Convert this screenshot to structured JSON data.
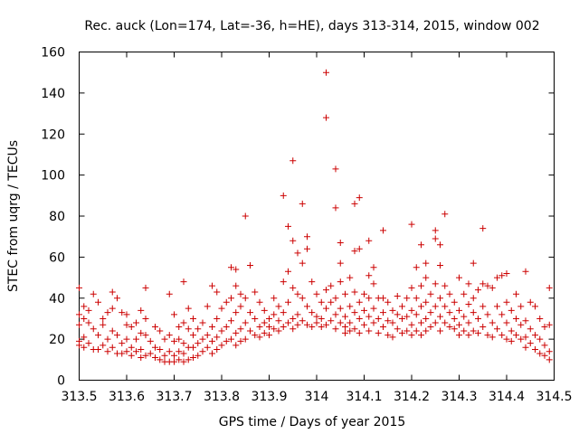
{
  "chart_data": {
    "type": "scatter",
    "title": "Rec. auck (Lon=174, Lat=-36, h=HE), days 313-314, 2015, window 002",
    "xlabel": "GPS time / Days of year 2015",
    "ylabel": "STEC from uqrg / TECUs",
    "xlim": [
      313.5,
      314.5
    ],
    "ylim": [
      0,
      160
    ],
    "xticks": [
      "313.5",
      "313.6",
      "313.7",
      "313.8",
      "313.9",
      "314",
      "314.1",
      "314.2",
      "314.3",
      "314.4",
      "314.5"
    ],
    "yticks": [
      "0",
      "20",
      "40",
      "60",
      "80",
      "100",
      "120",
      "140",
      "160"
    ],
    "grid": false,
    "marker": "+",
    "color": "#cc0000",
    "points": [
      [
        313.5,
        45
      ],
      [
        313.5,
        32
      ],
      [
        313.5,
        27
      ],
      [
        313.5,
        19
      ],
      [
        313.5,
        17
      ],
      [
        313.51,
        36
      ],
      [
        313.51,
        30
      ],
      [
        313.51,
        21
      ],
      [
        313.51,
        16
      ],
      [
        313.52,
        34
      ],
      [
        313.52,
        28
      ],
      [
        313.52,
        18
      ],
      [
        313.53,
        42
      ],
      [
        313.53,
        25
      ],
      [
        313.53,
        15
      ],
      [
        313.54,
        38
      ],
      [
        313.54,
        22
      ],
      [
        313.54,
        15
      ],
      [
        313.55,
        30
      ],
      [
        313.55,
        27
      ],
      [
        313.55,
        17
      ],
      [
        313.56,
        33
      ],
      [
        313.56,
        20
      ],
      [
        313.56,
        14
      ],
      [
        313.57,
        43
      ],
      [
        313.57,
        35
      ],
      [
        313.57,
        24
      ],
      [
        313.57,
        16
      ],
      [
        313.58,
        40
      ],
      [
        313.58,
        22
      ],
      [
        313.58,
        13
      ],
      [
        313.59,
        33
      ],
      [
        313.59,
        18
      ],
      [
        313.59,
        13
      ],
      [
        313.6,
        32
      ],
      [
        313.6,
        27
      ],
      [
        313.6,
        20
      ],
      [
        313.6,
        14
      ],
      [
        313.61,
        26
      ],
      [
        313.61,
        16
      ],
      [
        313.61,
        12
      ],
      [
        313.62,
        28
      ],
      [
        313.62,
        20
      ],
      [
        313.62,
        14
      ],
      [
        313.63,
        34
      ],
      [
        313.63,
        23
      ],
      [
        313.63,
        15
      ],
      [
        313.63,
        11
      ],
      [
        313.64,
        45
      ],
      [
        313.64,
        30
      ],
      [
        313.64,
        22
      ],
      [
        313.64,
        12
      ],
      [
        313.65,
        19
      ],
      [
        313.65,
        13
      ],
      [
        313.66,
        26
      ],
      [
        313.66,
        16
      ],
      [
        313.66,
        11
      ],
      [
        313.67,
        24
      ],
      [
        313.67,
        15
      ],
      [
        313.67,
        10
      ],
      [
        313.68,
        20
      ],
      [
        313.68,
        12
      ],
      [
        313.68,
        9
      ],
      [
        313.69,
        42
      ],
      [
        313.69,
        22
      ],
      [
        313.69,
        14
      ],
      [
        313.69,
        9
      ],
      [
        313.7,
        32
      ],
      [
        313.7,
        19
      ],
      [
        313.7,
        12
      ],
      [
        313.7,
        9
      ],
      [
        313.71,
        26
      ],
      [
        313.71,
        20
      ],
      [
        313.71,
        14
      ],
      [
        313.71,
        10
      ],
      [
        313.72,
        48
      ],
      [
        313.72,
        28
      ],
      [
        313.72,
        18
      ],
      [
        313.72,
        13
      ],
      [
        313.72,
        9
      ],
      [
        313.73,
        35
      ],
      [
        313.73,
        25
      ],
      [
        313.73,
        16
      ],
      [
        313.73,
        10
      ],
      [
        313.74,
        30
      ],
      [
        313.74,
        22
      ],
      [
        313.74,
        16
      ],
      [
        313.74,
        11
      ],
      [
        313.75,
        25
      ],
      [
        313.75,
        18
      ],
      [
        313.75,
        12
      ],
      [
        313.76,
        28
      ],
      [
        313.76,
        20
      ],
      [
        313.76,
        14
      ],
      [
        313.77,
        36
      ],
      [
        313.77,
        22
      ],
      [
        313.77,
        16
      ],
      [
        313.78,
        46
      ],
      [
        313.78,
        26
      ],
      [
        313.78,
        19
      ],
      [
        313.78,
        13
      ],
      [
        313.79,
        43
      ],
      [
        313.79,
        30
      ],
      [
        313.79,
        21
      ],
      [
        313.79,
        15
      ],
      [
        313.8,
        35
      ],
      [
        313.8,
        24
      ],
      [
        313.8,
        17
      ],
      [
        313.81,
        38
      ],
      [
        313.81,
        26
      ],
      [
        313.81,
        19
      ],
      [
        313.82,
        55
      ],
      [
        313.82,
        40
      ],
      [
        313.82,
        29
      ],
      [
        313.82,
        20
      ],
      [
        313.83,
        54
      ],
      [
        313.83,
        46
      ],
      [
        313.83,
        33
      ],
      [
        313.83,
        23
      ],
      [
        313.83,
        17
      ],
      [
        313.84,
        42
      ],
      [
        313.84,
        36
      ],
      [
        313.84,
        25
      ],
      [
        313.84,
        19
      ],
      [
        313.85,
        80
      ],
      [
        313.85,
        40
      ],
      [
        313.85,
        28
      ],
      [
        313.85,
        20
      ],
      [
        313.86,
        56
      ],
      [
        313.86,
        33
      ],
      [
        313.86,
        24
      ],
      [
        313.87,
        43
      ],
      [
        313.87,
        30
      ],
      [
        313.87,
        22
      ],
      [
        313.88,
        38
      ],
      [
        313.88,
        26
      ],
      [
        313.88,
        21
      ],
      [
        313.89,
        34
      ],
      [
        313.89,
        28
      ],
      [
        313.89,
        23
      ],
      [
        313.9,
        30
      ],
      [
        313.9,
        26
      ],
      [
        313.9,
        22
      ],
      [
        313.91,
        40
      ],
      [
        313.91,
        32
      ],
      [
        313.91,
        25
      ],
      [
        313.92,
        36
      ],
      [
        313.92,
        29
      ],
      [
        313.92,
        24
      ],
      [
        313.93,
        90
      ],
      [
        313.93,
        48
      ],
      [
        313.93,
        33
      ],
      [
        313.93,
        26
      ],
      [
        313.94,
        75
      ],
      [
        313.94,
        53
      ],
      [
        313.94,
        38
      ],
      [
        313.94,
        28
      ],
      [
        313.95,
        107
      ],
      [
        313.95,
        68
      ],
      [
        313.95,
        45
      ],
      [
        313.95,
        30
      ],
      [
        313.95,
        25
      ],
      [
        313.96,
        62
      ],
      [
        313.96,
        42
      ],
      [
        313.96,
        32
      ],
      [
        313.96,
        27
      ],
      [
        313.97,
        86
      ],
      [
        313.97,
        57
      ],
      [
        313.97,
        40
      ],
      [
        313.97,
        29
      ],
      [
        313.98,
        70
      ],
      [
        313.98,
        64
      ],
      [
        313.98,
        36
      ],
      [
        313.98,
        27
      ],
      [
        313.99,
        48
      ],
      [
        313.99,
        33
      ],
      [
        313.99,
        26
      ],
      [
        314.0,
        42
      ],
      [
        314.0,
        31
      ],
      [
        314.0,
        28
      ],
      [
        314.01,
        38
      ],
      [
        314.01,
        30
      ],
      [
        314.01,
        26
      ],
      [
        314.02,
        150
      ],
      [
        314.02,
        128
      ],
      [
        314.02,
        44
      ],
      [
        314.02,
        35
      ],
      [
        314.02,
        27
      ],
      [
        314.03,
        46
      ],
      [
        314.03,
        38
      ],
      [
        314.03,
        29
      ],
      [
        314.04,
        103
      ],
      [
        314.04,
        84
      ],
      [
        314.04,
        40
      ],
      [
        314.04,
        32
      ],
      [
        314.04,
        25
      ],
      [
        314.05,
        67
      ],
      [
        314.05,
        57
      ],
      [
        314.05,
        48
      ],
      [
        314.05,
        35
      ],
      [
        314.05,
        28
      ],
      [
        314.06,
        42
      ],
      [
        314.06,
        31
      ],
      [
        314.06,
        26
      ],
      [
        314.06,
        23
      ],
      [
        314.07,
        50
      ],
      [
        314.07,
        36
      ],
      [
        314.07,
        28
      ],
      [
        314.07,
        24
      ],
      [
        314.08,
        86
      ],
      [
        314.08,
        63
      ],
      [
        314.08,
        43
      ],
      [
        314.08,
        33
      ],
      [
        314.08,
        25
      ],
      [
        314.09,
        89
      ],
      [
        314.09,
        64
      ],
      [
        314.09,
        38
      ],
      [
        314.09,
        30
      ],
      [
        314.09,
        23
      ],
      [
        314.1,
        42
      ],
      [
        314.1,
        34
      ],
      [
        314.1,
        27
      ],
      [
        314.11,
        68
      ],
      [
        314.11,
        51
      ],
      [
        314.11,
        40
      ],
      [
        314.11,
        31
      ],
      [
        314.11,
        24
      ],
      [
        314.12,
        55
      ],
      [
        314.12,
        47
      ],
      [
        314.12,
        35
      ],
      [
        314.12,
        28
      ],
      [
        314.13,
        40
      ],
      [
        314.13,
        30
      ],
      [
        314.13,
        23
      ],
      [
        314.14,
        73
      ],
      [
        314.14,
        40
      ],
      [
        314.14,
        33
      ],
      [
        314.14,
        26
      ],
      [
        314.15,
        38
      ],
      [
        314.15,
        29
      ],
      [
        314.15,
        22
      ],
      [
        314.16,
        34
      ],
      [
        314.16,
        28
      ],
      [
        314.16,
        21
      ],
      [
        314.17,
        41
      ],
      [
        314.17,
        32
      ],
      [
        314.17,
        25
      ],
      [
        314.18,
        36
      ],
      [
        314.18,
        30
      ],
      [
        314.18,
        23
      ],
      [
        314.19,
        40
      ],
      [
        314.19,
        31
      ],
      [
        314.19,
        24
      ],
      [
        314.2,
        76
      ],
      [
        314.2,
        45
      ],
      [
        314.2,
        34
      ],
      [
        314.2,
        27
      ],
      [
        314.2,
        22
      ],
      [
        314.21,
        55
      ],
      [
        314.21,
        40
      ],
      [
        314.21,
        32
      ],
      [
        314.21,
        24
      ],
      [
        314.22,
        66
      ],
      [
        314.22,
        46
      ],
      [
        314.22,
        36
      ],
      [
        314.22,
        28
      ],
      [
        314.22,
        22
      ],
      [
        314.23,
        57
      ],
      [
        314.23,
        50
      ],
      [
        314.23,
        38
      ],
      [
        314.23,
        30
      ],
      [
        314.23,
        24
      ],
      [
        314.24,
        42
      ],
      [
        314.24,
        33
      ],
      [
        314.24,
        26
      ],
      [
        314.25,
        73
      ],
      [
        314.25,
        69
      ],
      [
        314.25,
        47
      ],
      [
        314.25,
        36
      ],
      [
        314.25,
        28
      ],
      [
        314.26,
        66
      ],
      [
        314.26,
        56
      ],
      [
        314.26,
        40
      ],
      [
        314.26,
        31
      ],
      [
        314.26,
        24
      ],
      [
        314.27,
        81
      ],
      [
        314.27,
        46
      ],
      [
        314.27,
        36
      ],
      [
        314.27,
        28
      ],
      [
        314.28,
        42
      ],
      [
        314.28,
        33
      ],
      [
        314.28,
        26
      ],
      [
        314.29,
        38
      ],
      [
        314.29,
        30
      ],
      [
        314.29,
        25
      ],
      [
        314.3,
        50
      ],
      [
        314.3,
        34
      ],
      [
        314.3,
        27
      ],
      [
        314.3,
        22
      ],
      [
        314.31,
        42
      ],
      [
        314.31,
        31
      ],
      [
        314.31,
        24
      ],
      [
        314.32,
        47
      ],
      [
        314.32,
        37
      ],
      [
        314.32,
        28
      ],
      [
        314.32,
        22
      ],
      [
        314.33,
        57
      ],
      [
        314.33,
        40
      ],
      [
        314.33,
        33
      ],
      [
        314.33,
        24
      ],
      [
        314.34,
        44
      ],
      [
        314.34,
        30
      ],
      [
        314.34,
        23
      ],
      [
        314.35,
        74
      ],
      [
        314.35,
        47
      ],
      [
        314.35,
        36
      ],
      [
        314.35,
        26
      ],
      [
        314.36,
        46
      ],
      [
        314.36,
        32
      ],
      [
        314.36,
        22
      ],
      [
        314.37,
        45
      ],
      [
        314.37,
        28
      ],
      [
        314.37,
        21
      ],
      [
        314.38,
        50
      ],
      [
        314.38,
        36
      ],
      [
        314.38,
        25
      ],
      [
        314.39,
        51
      ],
      [
        314.39,
        32
      ],
      [
        314.39,
        22
      ],
      [
        314.4,
        52
      ],
      [
        314.4,
        38
      ],
      [
        314.4,
        28
      ],
      [
        314.4,
        20
      ],
      [
        314.41,
        34
      ],
      [
        314.41,
        24
      ],
      [
        314.41,
        19
      ],
      [
        314.42,
        42
      ],
      [
        314.42,
        30
      ],
      [
        314.42,
        22
      ],
      [
        314.43,
        36
      ],
      [
        314.43,
        27
      ],
      [
        314.43,
        20
      ],
      [
        314.44,
        53
      ],
      [
        314.44,
        29
      ],
      [
        314.44,
        21
      ],
      [
        314.44,
        16
      ],
      [
        314.45,
        38
      ],
      [
        314.45,
        25
      ],
      [
        314.45,
        18
      ],
      [
        314.46,
        36
      ],
      [
        314.46,
        22
      ],
      [
        314.46,
        15
      ],
      [
        314.47,
        30
      ],
      [
        314.47,
        20
      ],
      [
        314.47,
        13
      ],
      [
        314.48,
        26
      ],
      [
        314.48,
        17
      ],
      [
        314.48,
        12
      ],
      [
        314.49,
        45
      ],
      [
        314.49,
        27
      ],
      [
        314.49,
        14
      ],
      [
        314.49,
        10
      ]
    ]
  }
}
